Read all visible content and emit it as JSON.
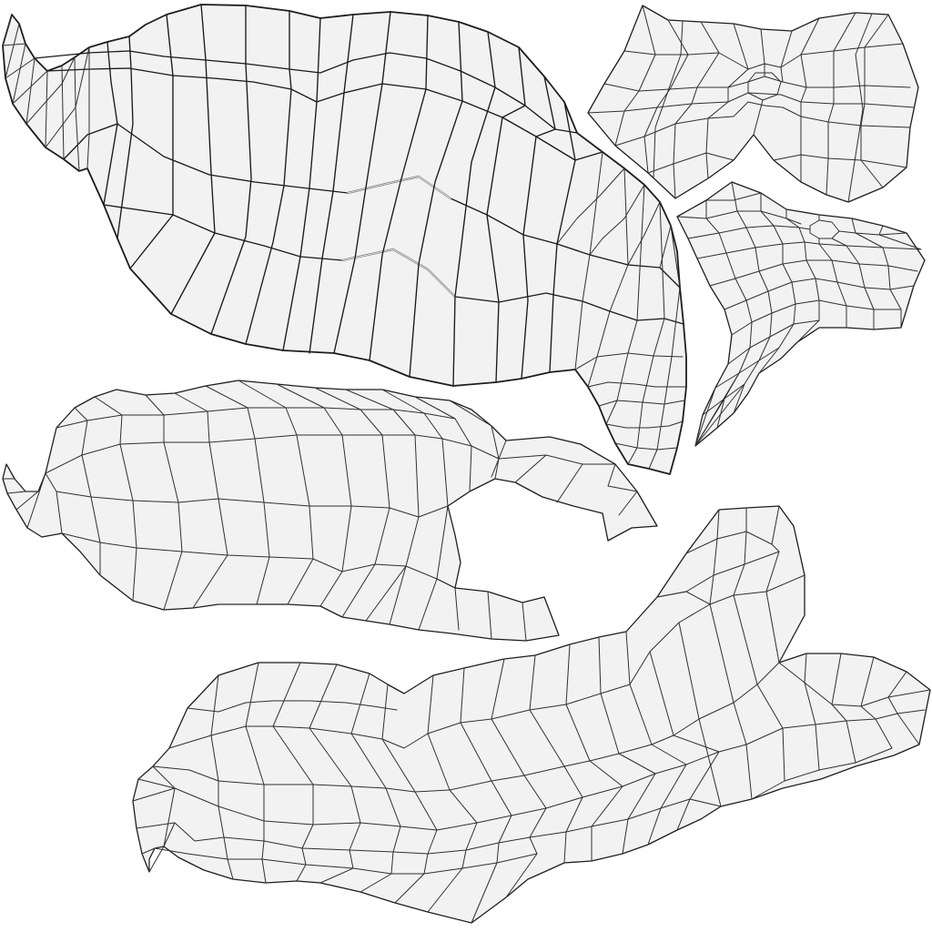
{
  "canvas": {
    "background": "#ffffff",
    "island_fill": "#f2f2f2",
    "wire_color": "#2b2b2b",
    "seam_color": "#7a7a7a"
  },
  "islands": [
    {
      "id": "island-large-top-left",
      "description_key": "uv-island"
    },
    {
      "id": "island-top-right-bowtie",
      "description_key": "uv-island"
    },
    {
      "id": "island-right-middle-funnel",
      "description_key": "uv-island"
    },
    {
      "id": "island-middle-left-hook",
      "description_key": "uv-island"
    },
    {
      "id": "island-bottom-long",
      "description_key": "uv-island"
    }
  ]
}
